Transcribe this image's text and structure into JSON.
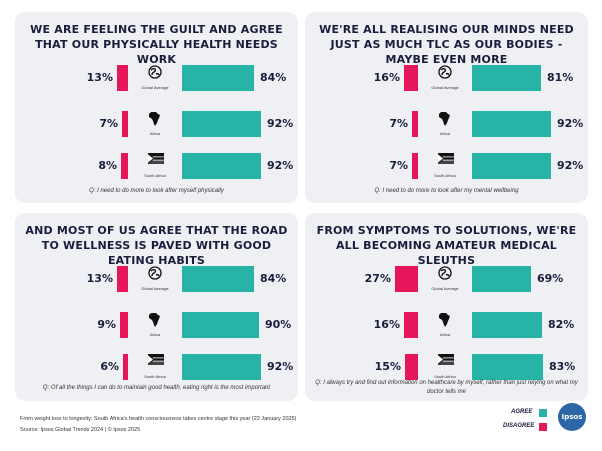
{
  "colors": {
    "agree": "#28b3a7",
    "disagree": "#e5175a",
    "panel": "#eef0f3"
  },
  "regions": [
    "Global Average",
    "Africa",
    "South Africa"
  ],
  "region_icons": [
    "globe-icon",
    "africa-map-icon",
    "south-africa-flag-icon"
  ],
  "chart_data": [
    {
      "type": "bar",
      "title": "WE ARE FEELING THE GUILT AND AGREE THAT OUR PHYSICALLY HEALTH NEEDS WORK",
      "categories": [
        "Global Average",
        "Africa",
        "South Africa"
      ],
      "series": [
        {
          "name": "Disagree",
          "values": [
            13,
            7,
            8
          ],
          "labels": [
            "13%",
            "7%",
            "8%"
          ]
        },
        {
          "name": "Agree",
          "values": [
            84,
            92,
            92
          ],
          "labels": [
            "84%",
            "92%",
            "92%"
          ]
        }
      ],
      "note": "Q: I need to do more to look after myself physically"
    },
    {
      "type": "bar",
      "title": "WE'RE ALL REALISING OUR MINDS NEED JUST AS MUCH TLC AS OUR BODIES - MAYBE EVEN MORE",
      "categories": [
        "Global Average",
        "Africa",
        "South Africa"
      ],
      "series": [
        {
          "name": "Disagree",
          "values": [
            16,
            7,
            7
          ],
          "labels": [
            "16%",
            "7%",
            "7%"
          ]
        },
        {
          "name": "Agree",
          "values": [
            81,
            92,
            92
          ],
          "labels": [
            "81%",
            "92%",
            "92%"
          ]
        }
      ],
      "note": "Q: I need to do more to look after my mental wellbeing"
    },
    {
      "type": "bar",
      "title": "AND MOST OF US AGREE THAT THE ROAD TO WELLNESS IS PAVED WITH GOOD EATING HABITS",
      "categories": [
        "Global Average",
        "Africa",
        "South Africa"
      ],
      "series": [
        {
          "name": "Disagree",
          "values": [
            13,
            9,
            6
          ],
          "labels": [
            "13%",
            "9%",
            "6%"
          ]
        },
        {
          "name": "Agree",
          "values": [
            84,
            90,
            92
          ],
          "labels": [
            "84%",
            "90%",
            "92%"
          ]
        }
      ],
      "note": "Q: Of all the things I can do to maintain good health, eating right is the most important"
    },
    {
      "type": "bar",
      "title": "FROM SYMPTOMS TO SOLUTIONS, WE'RE ALL BECOMING AMATEUR MEDICAL SLEUTHS",
      "categories": [
        "Global Average",
        "Africa",
        "South Africa"
      ],
      "series": [
        {
          "name": "Disagree",
          "values": [
            27,
            16,
            15
          ],
          "labels": [
            "27%",
            "16%",
            "15%"
          ]
        },
        {
          "name": "Agree",
          "values": [
            69,
            82,
            83
          ],
          "labels": [
            "69%",
            "82%",
            "83%"
          ]
        }
      ],
      "note": "Q: I always try and find out information on healthcare by myself, rather than just relying on what my doctor tells me"
    }
  ],
  "footer": {
    "source_line1": "From weight loss to longevity: South Africa's health consciousness takes centre stage this year (22 January 2025)",
    "source_line2": "Source: Ipsos Global Trends 2024  |  © Ipsos 2025"
  },
  "legend": {
    "agree": "AGREE",
    "disagree": "DISAGREE"
  },
  "logo": {
    "text": "Ipsos"
  }
}
